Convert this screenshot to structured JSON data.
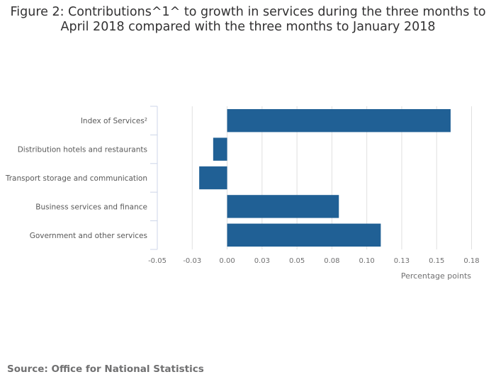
{
  "chart_data": {
    "type": "bar",
    "orientation": "horizontal",
    "title_lines": [
      "Figure 2: Contributions^1^ to growth in services during the three months to",
      "April 2018 compared with the three months to January 2018"
    ],
    "categories": [
      "Index of Services²",
      "Distribution hotels and restaurants",
      "Transport storage and communication",
      "Business services and finance",
      "Government and other services"
    ],
    "values": [
      0.16,
      -0.01,
      -0.02,
      0.08,
      0.11
    ],
    "xlabel": "Percentage points",
    "ylabel": "",
    "xlim": [
      -0.05,
      0.175
    ],
    "xticks": [
      -0.05,
      -0.025,
      0,
      0.025,
      0.05,
      0.075,
      0.1,
      0.125,
      0.15,
      0.175
    ],
    "xtick_labels": [
      "-0.05",
      "-0.03",
      "0.00",
      "0.03",
      "0.05",
      "0.08",
      "0.10",
      "0.13",
      "0.15",
      "0.18"
    ],
    "grid": "vertical",
    "legend": "none",
    "bar_color": "#206095",
    "source": "Source: Office for National Statistics"
  }
}
